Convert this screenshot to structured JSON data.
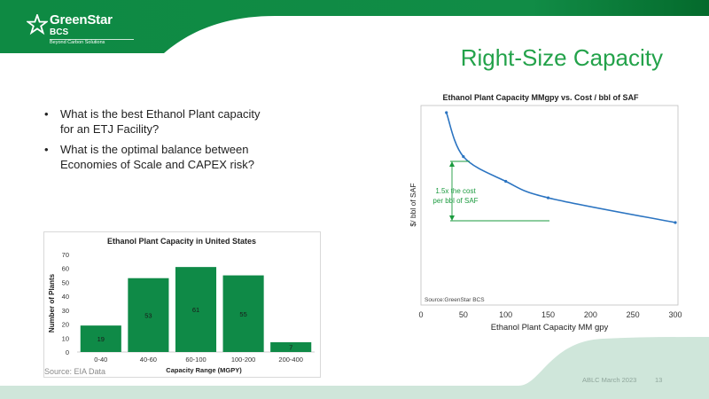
{
  "logo": {
    "name": "GreenStar",
    "sub": "BCS",
    "tagline": "Beyond Carbon Solutions"
  },
  "slide": {
    "title": "Right-Size Capacity"
  },
  "bullets": [
    "What is the best Ethanol Plant capacity for an ETJ Facility?",
    "What is the optimal balance between Economies of Scale and CAPEX risk?"
  ],
  "footer": {
    "event": "ABLC March 2023",
    "page": "13"
  },
  "colors": {
    "brand_green": "#0e8a43",
    "title_green": "#23a24a",
    "bar_green": "#0f8a47",
    "line_blue": "#2b74c1",
    "annot_green": "#1a9a3e",
    "footer_mint": "#cfe6da"
  },
  "chart_data": [
    {
      "type": "bar",
      "title": "Ethanol Plant Capacity in United States",
      "xlabel": "Capacity Range (MGPY)",
      "ylabel": "Number of Plants",
      "categories": [
        "0-40",
        "40-60",
        "60-100",
        "100-200",
        "200-400"
      ],
      "values": [
        19,
        53,
        61,
        55,
        7
      ],
      "ylim": [
        0,
        70
      ],
      "yticks": [
        0,
        10,
        20,
        30,
        40,
        50,
        60,
        70
      ],
      "source": "Source: EIA Data",
      "grid": false
    },
    {
      "type": "line",
      "title": "Ethanol Plant Capacity MMgpy vs. Cost / bbl of SAF",
      "xlabel": "Ethanol Plant Capacity MM gpy",
      "ylabel": "$/ bbl of SAF",
      "x": [
        30,
        50,
        100,
        150,
        300
      ],
      "y": [
        1.0,
        0.68,
        0.5,
        0.38,
        0.2
      ],
      "xlim": [
        0,
        300
      ],
      "xticks": [
        0,
        50,
        100,
        150,
        200,
        250,
        300
      ],
      "annotation": {
        "lines": [
          "1.5x the cost",
          "per bbl of SAF"
        ]
      },
      "source": "Source:GreenStar BCS",
      "grid": false
    }
  ]
}
